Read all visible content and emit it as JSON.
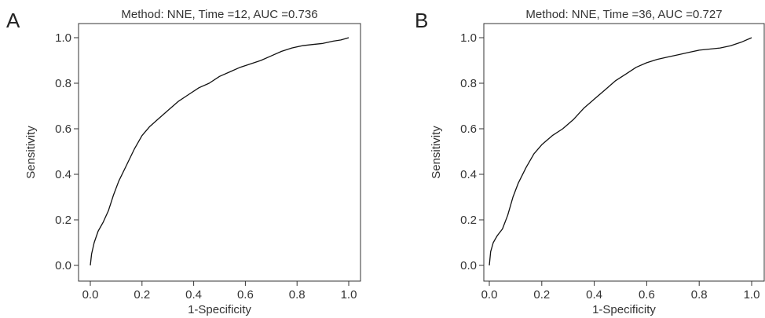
{
  "panels": [
    {
      "letter": "A"
    },
    {
      "letter": "B"
    }
  ],
  "chart_data": [
    {
      "type": "line",
      "title": "Method: NNE, Time =12, AUC =0.736",
      "xlabel": "1-Specificity",
      "ylabel": "Sensitivity",
      "xlim": [
        0,
        1
      ],
      "ylim": [
        0,
        1
      ],
      "xticks": [
        "0.0",
        "0.2",
        "0.4",
        "0.6",
        "0.8",
        "1.0"
      ],
      "yticks": [
        "0.0",
        "0.2",
        "0.4",
        "0.6",
        "0.8",
        "1.0"
      ],
      "grid": false,
      "line_color": "#111111",
      "series": [
        {
          "x": [
            0,
            0.005,
            0.015,
            0.03,
            0.05,
            0.07,
            0.09,
            0.11,
            0.14,
            0.17,
            0.2,
            0.23,
            0.26,
            0.3,
            0.34,
            0.38,
            0.42,
            0.46,
            0.5,
            0.54,
            0.58,
            0.62,
            0.66,
            0.7,
            0.74,
            0.78,
            0.82,
            0.86,
            0.9,
            0.94,
            0.97,
            1.0
          ],
          "y": [
            0,
            0.05,
            0.1,
            0.15,
            0.19,
            0.24,
            0.31,
            0.37,
            0.44,
            0.51,
            0.57,
            0.61,
            0.64,
            0.68,
            0.72,
            0.75,
            0.78,
            0.8,
            0.83,
            0.85,
            0.87,
            0.885,
            0.9,
            0.92,
            0.94,
            0.955,
            0.965,
            0.97,
            0.975,
            0.985,
            0.99,
            1.0
          ]
        }
      ]
    },
    {
      "type": "line",
      "title": "Method: NNE, Time =36, AUC =0.727",
      "xlabel": "1-Specificity",
      "ylabel": "Sensitivity",
      "xlim": [
        0,
        1
      ],
      "ylim": [
        0,
        1
      ],
      "xticks": [
        "0.0",
        "0.2",
        "0.4",
        "0.6",
        "0.8",
        "1.0"
      ],
      "yticks": [
        "0.0",
        "0.2",
        "0.4",
        "0.6",
        "0.8",
        "1.0"
      ],
      "grid": false,
      "line_color": "#111111",
      "series": [
        {
          "x": [
            0,
            0.005,
            0.015,
            0.03,
            0.05,
            0.07,
            0.09,
            0.11,
            0.14,
            0.17,
            0.2,
            0.24,
            0.28,
            0.32,
            0.36,
            0.4,
            0.44,
            0.48,
            0.52,
            0.56,
            0.6,
            0.64,
            0.68,
            0.72,
            0.76,
            0.8,
            0.84,
            0.88,
            0.92,
            0.96,
            1.0
          ],
          "y": [
            0,
            0.06,
            0.1,
            0.13,
            0.16,
            0.22,
            0.3,
            0.36,
            0.43,
            0.49,
            0.53,
            0.57,
            0.6,
            0.64,
            0.69,
            0.73,
            0.77,
            0.81,
            0.84,
            0.87,
            0.89,
            0.905,
            0.915,
            0.925,
            0.935,
            0.945,
            0.95,
            0.955,
            0.965,
            0.98,
            1.0
          ]
        }
      ]
    }
  ]
}
